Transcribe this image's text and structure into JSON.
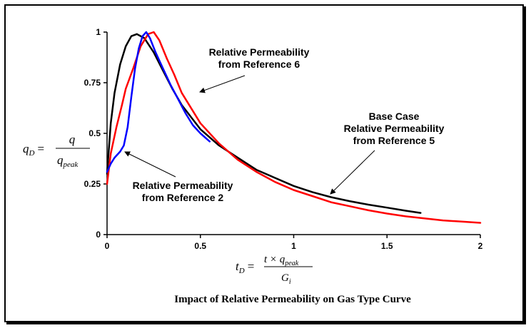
{
  "chart_data": {
    "type": "line",
    "title": "Impact of Relative Permeability on Gas Type Curve",
    "ylabel": {
      "lhs": "q",
      "lhs_sub": "D",
      "num": "q",
      "den": "q",
      "den_sub": "peak"
    },
    "xlabel": {
      "lhs": "t",
      "lhs_sub": "D",
      "num_a": "t × q",
      "num_sub": "peak",
      "den": "G",
      "den_sub": "i"
    },
    "xlim": [
      0,
      2
    ],
    "ylim": [
      0,
      1
    ],
    "xticks": [
      "0",
      "0.5",
      "1",
      "1.5",
      "2"
    ],
    "yticks": [
      "0",
      "0.25",
      "0.5",
      "0.75",
      "1"
    ],
    "grid": false,
    "legend": "none",
    "series": [
      {
        "color": "#000000",
        "x": [
          0.0,
          0.02,
          0.04,
          0.07,
          0.1,
          0.13,
          0.16,
          0.2,
          0.25,
          0.3,
          0.35,
          0.4,
          0.5,
          0.6,
          0.7,
          0.8,
          0.9,
          1.0,
          1.1,
          1.2,
          1.3,
          1.4,
          1.5,
          1.6,
          1.68
        ],
        "y": [
          0.3,
          0.55,
          0.7,
          0.84,
          0.93,
          0.98,
          0.99,
          0.97,
          0.9,
          0.81,
          0.72,
          0.64,
          0.52,
          0.44,
          0.38,
          0.32,
          0.28,
          0.24,
          0.21,
          0.185,
          0.165,
          0.148,
          0.133,
          0.118,
          0.107
        ]
      },
      {
        "color": "#ff0000",
        "x": [
          0.0,
          0.02,
          0.05,
          0.08,
          0.1,
          0.14,
          0.18,
          0.22,
          0.25,
          0.28,
          0.32,
          0.36,
          0.4,
          0.5,
          0.6,
          0.7,
          0.8,
          0.9,
          1.0,
          1.1,
          1.2,
          1.3,
          1.4,
          1.5,
          1.6,
          1.7,
          1.8,
          1.9,
          2.0
        ],
        "y": [
          0.25,
          0.4,
          0.53,
          0.64,
          0.72,
          0.82,
          0.93,
          0.99,
          1.0,
          0.96,
          0.87,
          0.79,
          0.7,
          0.55,
          0.45,
          0.37,
          0.31,
          0.26,
          0.22,
          0.19,
          0.16,
          0.14,
          0.12,
          0.104,
          0.09,
          0.08,
          0.07,
          0.064,
          0.058
        ]
      },
      {
        "color": "#0000ff",
        "x": [
          0.0,
          0.02,
          0.04,
          0.07,
          0.09,
          0.11,
          0.13,
          0.15,
          0.17,
          0.19,
          0.21,
          0.23,
          0.26,
          0.3,
          0.34,
          0.38,
          0.42,
          0.46,
          0.5,
          0.55
        ],
        "y": [
          0.31,
          0.35,
          0.38,
          0.41,
          0.44,
          0.53,
          0.68,
          0.82,
          0.92,
          0.98,
          1.0,
          0.97,
          0.9,
          0.82,
          0.74,
          0.67,
          0.6,
          0.54,
          0.5,
          0.46
        ]
      }
    ],
    "annotations": [
      {
        "lines": [
          "Relative Permeability",
          "from Reference 6"
        ]
      },
      {
        "lines": [
          "Base Case",
          "Relative Permeability",
          "from Reference 5"
        ]
      },
      {
        "lines": [
          "Relative Permeability",
          "from Reference 2"
        ]
      }
    ]
  }
}
